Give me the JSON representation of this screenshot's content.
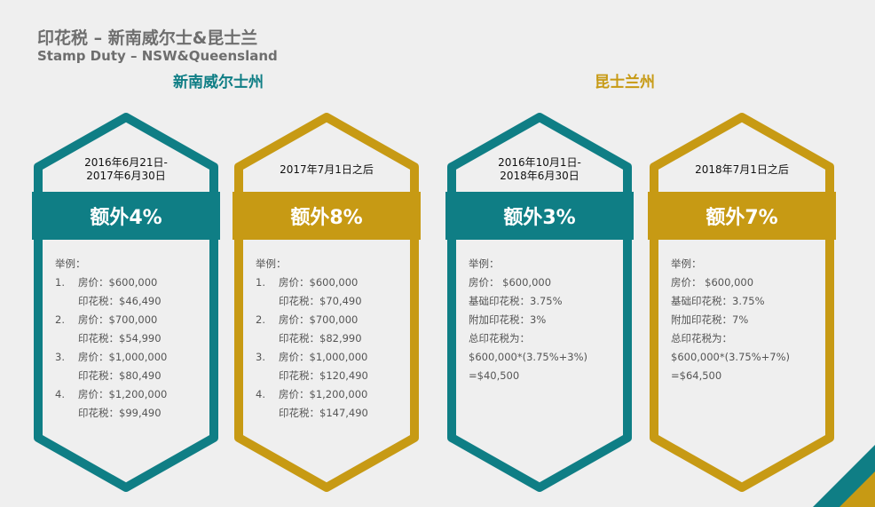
{
  "header": {
    "title_cn": "印花税 – 新南威尔士&昆士兰",
    "title_en": "Stamp Duty – NSW&Queensland"
  },
  "regions": {
    "nsw": "新南威尔士州",
    "qld": "昆士兰州"
  },
  "colors": {
    "teal": "#0f7e85",
    "gold": "#c79a14",
    "background": "#efefef"
  },
  "cards": [
    {
      "period": "2016年6月21日-\n2017年6月30日",
      "extra": "额外4%",
      "example_label": "举例：",
      "items": [
        {
          "num": "1.",
          "price": "房价：$600,000",
          "duty": "印花税：$46,490"
        },
        {
          "num": "2.",
          "price": "房价：$700,000",
          "duty": "印花税：$54,990"
        },
        {
          "num": "3.",
          "price": "房价：$1,000,000",
          "duty": "印花税：$80,490"
        },
        {
          "num": "4.",
          "price": "房价：$1,200,000",
          "duty": "印花税：$99,490"
        }
      ]
    },
    {
      "period": "2017年7月1日之后",
      "extra": "额外8%",
      "example_label": "举例：",
      "items": [
        {
          "num": "1.",
          "price": "房价：$600,000",
          "duty": "印花税：$70,490"
        },
        {
          "num": "2.",
          "price": "房价：$700,000",
          "duty": "印花税：$82,990"
        },
        {
          "num": "3.",
          "price": "房价：$1,000,000",
          "duty": "印花税：$120,490"
        },
        {
          "num": "4.",
          "price": "房价：$1,200,000",
          "duty": "印花税：$147,490"
        }
      ]
    },
    {
      "period": "2016年10月1日-\n2018年6月30日",
      "extra": "额外3%",
      "example_label": "举例：",
      "lines": [
        "房价： $600,000",
        "基础印花税：3.75%",
        "附加印花税：3%",
        "总印花税为：",
        "$600,000*(3.75%+3%)",
        "=$40,500"
      ]
    },
    {
      "period": "2018年7月1日之后",
      "extra": "额外7%",
      "example_label": "举例：",
      "lines": [
        "房价： $600,000",
        "基础印花税：3.75%",
        "附加印花税：7%",
        "总印花税为：",
        "$600,000*(3.75%+7%)",
        "=$64,500"
      ]
    }
  ]
}
